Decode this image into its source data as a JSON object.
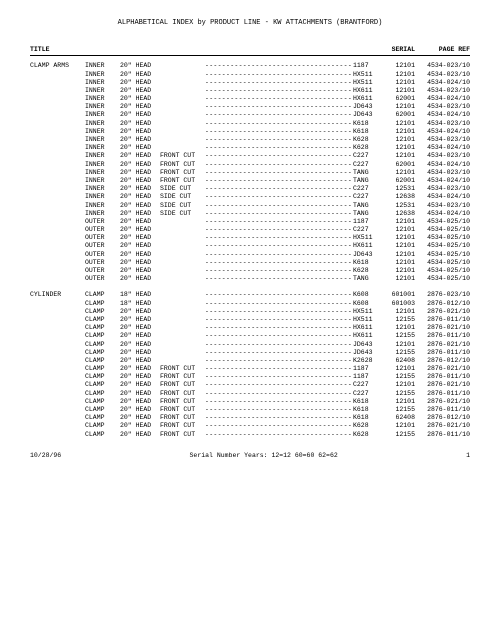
{
  "title": "ALPHABETICAL INDEX by PRODUCT LINE - KW ATTACHMENTS (BRANTFORD)",
  "headers": {
    "title": "TITLE",
    "serial": "SERIAL",
    "page": "PAGE REF"
  },
  "groups": [
    {
      "name": "CLAMP ARMS",
      "rows": [
        {
          "sub": "INNER",
          "head": "20\" HEAD",
          "cut": "",
          "model": "1187",
          "serial": "12101",
          "page": "4534-023/10"
        },
        {
          "sub": "INNER",
          "head": "20\" HEAD",
          "cut": "",
          "model": "HX511",
          "serial": "12101",
          "page": "4534-023/10"
        },
        {
          "sub": "INNER",
          "head": "20\" HEAD",
          "cut": "",
          "model": "HX511",
          "serial": "12101",
          "page": "4534-024/10"
        },
        {
          "sub": "INNER",
          "head": "20\" HEAD",
          "cut": "",
          "model": "HX611",
          "serial": "12101",
          "page": "4534-023/10"
        },
        {
          "sub": "INNER",
          "head": "20\" HEAD",
          "cut": "",
          "model": "HX611",
          "serial": "62001",
          "page": "4534-024/10"
        },
        {
          "sub": "INNER",
          "head": "20\" HEAD",
          "cut": "",
          "model": "JD643",
          "serial": "12101",
          "page": "4534-023/10"
        },
        {
          "sub": "INNER",
          "head": "20\" HEAD",
          "cut": "",
          "model": "JD643",
          "serial": "62001",
          "page": "4534-024/10"
        },
        {
          "sub": "INNER",
          "head": "20\" HEAD",
          "cut": "",
          "model": "K618",
          "serial": "12101",
          "page": "4534-023/10"
        },
        {
          "sub": "INNER",
          "head": "20\" HEAD",
          "cut": "",
          "model": "K618",
          "serial": "12101",
          "page": "4534-024/10"
        },
        {
          "sub": "INNER",
          "head": "20\" HEAD",
          "cut": "",
          "model": "K628",
          "serial": "12101",
          "page": "4534-023/10"
        },
        {
          "sub": "INNER",
          "head": "20\" HEAD",
          "cut": "",
          "model": "K628",
          "serial": "12101",
          "page": "4534-024/10"
        },
        {
          "sub": "INNER",
          "head": "20\" HEAD",
          "cut": "FRONT CUT",
          "model": "C227",
          "serial": "12101",
          "page": "4534-023/10"
        },
        {
          "sub": "INNER",
          "head": "20\" HEAD",
          "cut": "FRONT CUT",
          "model": "C227",
          "serial": "62001",
          "page": "4534-024/10"
        },
        {
          "sub": "INNER",
          "head": "20\" HEAD",
          "cut": "FRONT CUT",
          "model": "TANG",
          "serial": "12101",
          "page": "4534-023/10"
        },
        {
          "sub": "INNER",
          "head": "20\" HEAD",
          "cut": "FRONT CUT",
          "model": "TANG",
          "serial": "62001",
          "page": "4534-024/10"
        },
        {
          "sub": "INNER",
          "head": "20\" HEAD",
          "cut": "SIDE CUT",
          "model": "C227",
          "serial": "12531",
          "page": "4534-023/10"
        },
        {
          "sub": "INNER",
          "head": "20\" HEAD",
          "cut": "SIDE CUT",
          "model": "C227",
          "serial": "12638",
          "page": "4534-024/10"
        },
        {
          "sub": "INNER",
          "head": "20\" HEAD",
          "cut": "SIDE CUT",
          "model": "TANG",
          "serial": "12531",
          "page": "4534-023/10"
        },
        {
          "sub": "INNER",
          "head": "20\" HEAD",
          "cut": "SIDE CUT",
          "model": "TANG",
          "serial": "12638",
          "page": "4534-024/10"
        },
        {
          "sub": "OUTER",
          "head": "20\" HEAD",
          "cut": "",
          "model": "1187",
          "serial": "12101",
          "page": "4534-025/10"
        },
        {
          "sub": "OUTER",
          "head": "20\" HEAD",
          "cut": "",
          "model": "C227",
          "serial": "12101",
          "page": "4534-025/10"
        },
        {
          "sub": "OUTER",
          "head": "20\" HEAD",
          "cut": "",
          "model": "HX511",
          "serial": "12101",
          "page": "4534-025/10"
        },
        {
          "sub": "OUTER",
          "head": "20\" HEAD",
          "cut": "",
          "model": "HX611",
          "serial": "12101",
          "page": "4534-025/10"
        },
        {
          "sub": "OUTER",
          "head": "20\" HEAD",
          "cut": "",
          "model": "JD643",
          "serial": "12101",
          "page": "4534-025/10"
        },
        {
          "sub": "OUTER",
          "head": "20\" HEAD",
          "cut": "",
          "model": "K618",
          "serial": "12101",
          "page": "4534-025/10"
        },
        {
          "sub": "OUTER",
          "head": "20\" HEAD",
          "cut": "",
          "model": "K628",
          "serial": "12101",
          "page": "4534-025/10"
        },
        {
          "sub": "OUTER",
          "head": "20\" HEAD",
          "cut": "",
          "model": "TANG",
          "serial": "12101",
          "page": "4534-025/10"
        }
      ]
    },
    {
      "name": "CYLINDER",
      "rows": [
        {
          "sub": "CLAMP",
          "head": "18\" HEAD",
          "cut": "",
          "model": "K608",
          "serial": "601001",
          "page": "2876-023/10"
        },
        {
          "sub": "CLAMP",
          "head": "18\" HEAD",
          "cut": "",
          "model": "K608",
          "serial": "601003",
          "page": "2876-012/10"
        },
        {
          "sub": "CLAMP",
          "head": "20\" HEAD",
          "cut": "",
          "model": "HX511",
          "serial": "12101",
          "page": "2876-021/10"
        },
        {
          "sub": "CLAMP",
          "head": "20\" HEAD",
          "cut": "",
          "model": "HX511",
          "serial": "12155",
          "page": "2876-011/10"
        },
        {
          "sub": "CLAMP",
          "head": "20\" HEAD",
          "cut": "",
          "model": "HX611",
          "serial": "12101",
          "page": "2876-021/10"
        },
        {
          "sub": "CLAMP",
          "head": "20\" HEAD",
          "cut": "",
          "model": "HX611",
          "serial": "12155",
          "page": "2876-011/10"
        },
        {
          "sub": "CLAMP",
          "head": "20\" HEAD",
          "cut": "",
          "model": "JD643",
          "serial": "12101",
          "page": "2876-021/10"
        },
        {
          "sub": "CLAMP",
          "head": "20\" HEAD",
          "cut": "",
          "model": "JD643",
          "serial": "12155",
          "page": "2876-011/10"
        },
        {
          "sub": "CLAMP",
          "head": "20\" HEAD",
          "cut": "",
          "model": "K2628",
          "serial": "62408",
          "page": "2876-012/10"
        },
        {
          "sub": "CLAMP",
          "head": "20\" HEAD",
          "cut": "FRONT CUT",
          "model": "1187",
          "serial": "12101",
          "page": "2876-021/10"
        },
        {
          "sub": "CLAMP",
          "head": "20\" HEAD",
          "cut": "FRONT CUT",
          "model": "1187",
          "serial": "12155",
          "page": "2876-011/10"
        },
        {
          "sub": "CLAMP",
          "head": "20\" HEAD",
          "cut": "FRONT CUT",
          "model": "C227",
          "serial": "12101",
          "page": "2876-021/10"
        },
        {
          "sub": "CLAMP",
          "head": "20\" HEAD",
          "cut": "FRONT CUT",
          "model": "C227",
          "serial": "12155",
          "page": "2876-011/10"
        },
        {
          "sub": "CLAMP",
          "head": "20\" HEAD",
          "cut": "FRONT CUT",
          "model": "K618",
          "serial": "12101",
          "page": "2876-021/10"
        },
        {
          "sub": "CLAMP",
          "head": "20\" HEAD",
          "cut": "FRONT CUT",
          "model": "K618",
          "serial": "12155",
          "page": "2876-011/10"
        },
        {
          "sub": "CLAMP",
          "head": "20\" HEAD",
          "cut": "FRONT CUT",
          "model": "K618",
          "serial": "62408",
          "page": "2876-012/10"
        },
        {
          "sub": "CLAMP",
          "head": "20\" HEAD",
          "cut": "FRONT CUT",
          "model": "K628",
          "serial": "12101",
          "page": "2876-021/10"
        },
        {
          "sub": "CLAMP",
          "head": "20\" HEAD",
          "cut": "FRONT CUT",
          "model": "K628",
          "serial": "12155",
          "page": "2876-011/10"
        }
      ]
    }
  ],
  "footer": {
    "date": "10/28/96",
    "note": "Serial Number Years: 12=12   60=60   62=62",
    "pageno": "1"
  },
  "style": {
    "font_family": "Courier New",
    "font_size_pt": 6.5,
    "text_color": "#000000",
    "background_color": "#ffffff",
    "dot_leader_char": "-"
  }
}
